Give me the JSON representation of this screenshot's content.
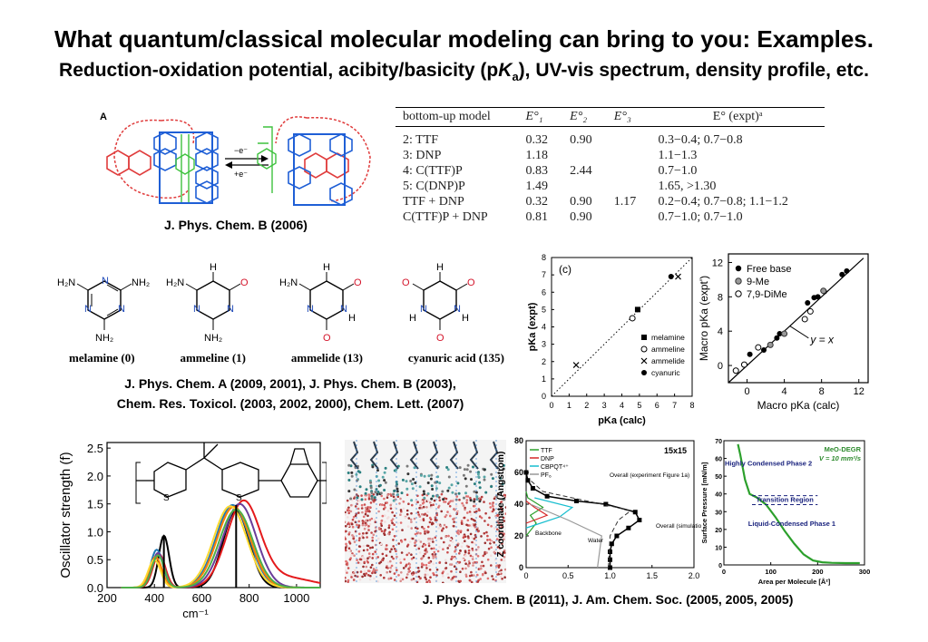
{
  "title": "What quantum/classical molecular modeling can bring to you: Examples.",
  "subtitle_pre": "Reduction-oxidation potential, acibity/basicity (p",
  "subtitle_K": "K",
  "subtitle_a": "a",
  "subtitle_post": "),  UV-vis spectrum, density profile, etc.",
  "rotaxane": {
    "panel_letter": "A",
    "arrow_top": "−e⁻",
    "arrow_bottom": "+e⁻",
    "caption": "J. Phys. Chem. B (2006)"
  },
  "redox_table": {
    "headers": [
      "bottom-up model",
      "E°₁",
      "E°₂",
      "E°₃",
      "E° (expt)ᵃ"
    ],
    "rows": [
      [
        "2:  TTF",
        "0.32",
        "0.90",
        "",
        "0.3−0.4; 0.7−0.8"
      ],
      [
        "3:  DNP",
        "1.18",
        "",
        "",
        "1.1−1.3"
      ],
      [
        "4:  C(TTF)P",
        "0.83",
        "2.44",
        "",
        "0.7−1.0"
      ],
      [
        "5:  C(DNP)P",
        "1.49",
        "",
        "",
        "1.65, >1.30"
      ],
      [
        "TTF + DNP",
        "0.32",
        "0.90",
        "1.17",
        "0.2−0.4; 0.7−0.8; 1.1−1.2"
      ],
      [
        "C(TTF)P + DNP",
        "0.81",
        "0.90",
        "",
        "0.7−1.0; 0.7−1.0"
      ]
    ]
  },
  "triazines": {
    "names": [
      "melamine (0)",
      "ammeline (1)",
      "ammelide (13)",
      "cyanuric acid (135)"
    ],
    "caption_line1": "J. Phys. Chem. A (2009, 2001), J. Phys. Chem. B (2003),",
    "caption_line2": "Chem. Res. Toxicol. (2003, 2002, 2000), Chem. Lett. (2007)"
  },
  "chart_data": [
    {
      "type": "scatter",
      "panel_label": "(c)",
      "xlabel": "pKa (calc)",
      "ylabel": "pKa (expt)",
      "xlim": [
        0,
        8
      ],
      "ylim": [
        0,
        8
      ],
      "xticks": [
        "0",
        "1",
        "2",
        "3",
        "4",
        "5",
        "6",
        "7",
        "8"
      ],
      "yticks": [
        "0",
        "1",
        "2",
        "3",
        "4",
        "5",
        "6",
        "7",
        "8"
      ],
      "series": [
        {
          "name": "melamine",
          "marker": "square-filled",
          "points": [
            [
              4.9,
              5.0
            ]
          ]
        },
        {
          "name": "ammeline",
          "marker": "circle-open",
          "points": [
            [
              4.6,
              4.5
            ]
          ]
        },
        {
          "name": "ammelide",
          "marker": "cross",
          "points": [
            [
              1.4,
              1.8
            ],
            [
              7.2,
              6.9
            ]
          ]
        },
        {
          "name": "cyanuric",
          "marker": "circle-filled",
          "points": [
            [
              6.8,
              6.9
            ]
          ]
        }
      ],
      "reference_line": "y = x (dotted)",
      "legend": "right"
    },
    {
      "type": "scatter",
      "xlabel": "Macro pKa (calc)",
      "ylabel": "Macro pKa (expt')",
      "xlim": [
        -2,
        13
      ],
      "ylim": [
        -2,
        13
      ],
      "xticks": [
        "0",
        "4",
        "8",
        "12"
      ],
      "yticks": [
        "0",
        "4",
        "8",
        "12"
      ],
      "series": [
        {
          "name": "Free base",
          "marker": "circle-filled",
          "points": [
            [
              0.3,
              1.3
            ],
            [
              1.8,
              1.8
            ],
            [
              3.2,
              3.2
            ],
            [
              3.5,
              3.7
            ],
            [
              6.5,
              7.3
            ],
            [
              7.2,
              7.9
            ],
            [
              7.6,
              8.0
            ],
            [
              8.3,
              8.6
            ],
            [
              10.2,
              10.6
            ],
            [
              10.7,
              11.0
            ]
          ]
        },
        {
          "name": "9-Me",
          "marker": "circle-gray",
          "points": [
            [
              2.5,
              2.4
            ],
            [
              4.0,
              3.7
            ],
            [
              8.2,
              8.7
            ]
          ]
        },
        {
          "name": "7,9-DiMe",
          "marker": "circle-open",
          "points": [
            [
              -1.2,
              -0.6
            ],
            [
              -0.3,
              0.1
            ],
            [
              1.2,
              2.1
            ],
            [
              6.2,
              5.4
            ],
            [
              6.8,
              6.3
            ]
          ]
        }
      ],
      "annotation": "y = x",
      "legend": "top-left"
    },
    {
      "type": "line",
      "xlabel": "cm⁻¹",
      "ylabel": "Oscillator strength (f)",
      "xlim": [
        200,
        1100
      ],
      "ylim": [
        0.0,
        2.5
      ],
      "xticks": [
        "200",
        "400",
        "600",
        "800",
        "1000"
      ],
      "yticks": [
        "0.0",
        "0.5",
        "1.0",
        "1.5",
        "2.0",
        "2.5"
      ],
      "molecule_subscript": "n",
      "series": [
        {
          "color": "#000000",
          "peak_x": 440,
          "peak_y": 0.93,
          "peak2_x": 745,
          "peak2_y": 1.38
        },
        {
          "color": "#e41a1c",
          "peak_x": 420,
          "peak_y": 0.6,
          "peak2_x": 775,
          "peak2_y": 1.5
        },
        {
          "color": "#1f78b4",
          "peak_x": 410,
          "peak_y": 0.68,
          "peak2_x": 730,
          "peak2_y": 1.48
        },
        {
          "color": "#6a3d9a",
          "peak_x": 415,
          "peak_y": 0.62,
          "peak2_x": 760,
          "peak2_y": 1.5
        },
        {
          "color": "#ff7f00",
          "peak_x": 405,
          "peak_y": 0.55,
          "peak2_x": 735,
          "peak2_y": 1.45
        },
        {
          "color": "#ffd92f",
          "peak_x": 400,
          "peak_y": 0.5,
          "peak2_x": 720,
          "peak2_y": 1.46
        },
        {
          "color": "#4daf4a",
          "peak_x": 415,
          "peak_y": 0.58,
          "peak2_x": 745,
          "peak2_y": 1.4
        }
      ],
      "sticks": [
        {
          "x": 440,
          "y": 0.93
        },
        {
          "x": 745,
          "y": 1.48
        }
      ]
    },
    {
      "type": "line",
      "xlabel": "",
      "ylabel": "Z coordinate (Angstrom)",
      "xlim": [
        0,
        2.0
      ],
      "ylim": [
        0,
        80
      ],
      "xticks": [
        "0",
        "0.5",
        "1.0",
        "1.5",
        "2.0"
      ],
      "yticks": [
        "0",
        "20",
        "40",
        "60",
        "80"
      ],
      "panel_label": "15x15",
      "series": [
        {
          "name": "TTF",
          "color": "#2ca02c"
        },
        {
          "name": "DNP",
          "color": "#d62728"
        },
        {
          "name": "CBPQT⁴⁺",
          "color": "#17becf"
        },
        {
          "name": "PF₆",
          "color": "#999999"
        }
      ],
      "annotations": [
        "Overall (experiment Figure 1a)",
        "Overall (simulation)",
        "Backbone",
        "Water"
      ],
      "overall_simulation": {
        "z": [
          0,
          5,
          10,
          15,
          20,
          25,
          30,
          35,
          40,
          42,
          45,
          50,
          55,
          60
        ],
        "value": [
          1.0,
          1.0,
          1.0,
          1.02,
          1.08,
          1.22,
          1.35,
          1.3,
          0.95,
          0.6,
          0.25,
          0.08,
          0.02,
          0.0
        ]
      }
    },
    {
      "type": "line",
      "xlabel": "Area per Molecule [Å²]",
      "ylabel": "Surface Pressure [mN/m]",
      "xlim": [
        0,
        300
      ],
      "ylim": [
        0,
        70
      ],
      "xticks": [
        "0",
        "100",
        "200",
        "300"
      ],
      "yticks": [
        "0",
        "10",
        "20",
        "30",
        "40",
        "50",
        "60",
        "70"
      ],
      "series_title": "MeO-DEGR",
      "series_subtitle": "V = 10 mm²/s",
      "regions": [
        "Highly Condensed Phase 2",
        "Transition Region",
        "Liquid-Condensed Phase 1"
      ],
      "x": [
        30,
        35,
        45,
        55,
        70,
        90,
        110,
        130,
        150,
        170,
        190,
        210,
        230,
        260,
        290
      ],
      "y": [
        68,
        62,
        48,
        40,
        38,
        34,
        27,
        19,
        12,
        6,
        2.5,
        1.5,
        1.2,
        1.0,
        1.0
      ],
      "color": "#2ca02c"
    }
  ],
  "captions": {
    "bottom": "J. Phys. Chem. B (2011), J. Am. Chem. Soc. (2005, 2005, 2005)"
  }
}
